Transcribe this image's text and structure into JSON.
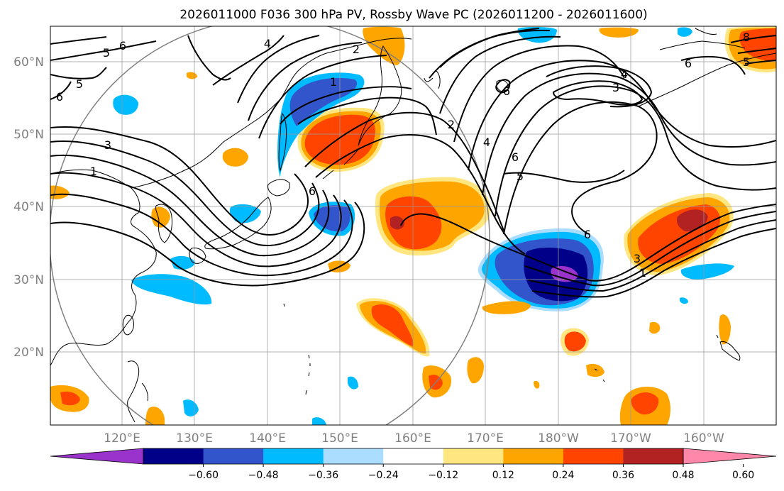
{
  "title": "2026011000 F036 300 hPa PV, Rossby Wave PC (2026011200 - 2026011600)",
  "lon_labels": [
    "120°E",
    "130°E",
    "140°E",
    "150°E",
    "160°E",
    "170°E",
    "180°W",
    "170°W",
    "160°W"
  ],
  "lat_labels": [
    "60°N",
    "50°N",
    "40°N",
    "30°N",
    "20°N"
  ],
  "colorbar": {
    "tick_labels": [
      "−0.60",
      "−0.48",
      "−0.36",
      "−0.24",
      "−0.12",
      "0.12",
      "0.24",
      "0.36",
      "0.48",
      "0.60"
    ],
    "colors": [
      "#9933cc",
      "#000088",
      "#3355cc",
      "#00bbff",
      "#aaddff",
      "#ffffff",
      "#ffe680",
      "#ffa500",
      "#ff4400",
      "#b22222",
      "#ff88aa"
    ],
    "extend": "both"
  },
  "contour_labels": [
    "6",
    "5",
    "5",
    "6",
    "3",
    "1",
    "4",
    "2",
    "1",
    "6",
    "6",
    "2",
    "4",
    "6",
    "5",
    "4",
    "3",
    "6",
    "3",
    "1",
    "6",
    "5",
    "8"
  ],
  "colors": {
    "contour": "#000000",
    "grid": "#9a9a9a",
    "coast": "#000000",
    "axis_text": "#808080"
  }
}
